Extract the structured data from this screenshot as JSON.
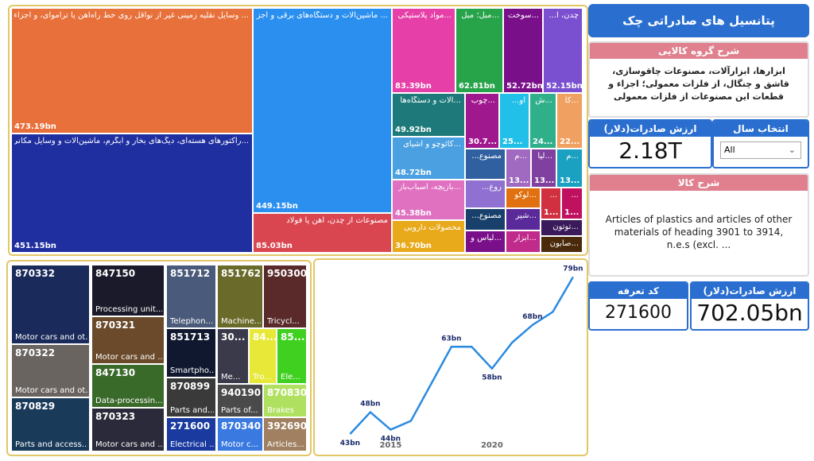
{
  "header": {
    "title": "پتانسیل های صادراتی چک"
  },
  "treemap_top": {
    "tiles": [
      {
        "label": "... وسایل نقلیه زمینی غیر از نواقل روی خط راه‌آهن یا تراموای، و اجزاء و",
        "value": "473.19bn"
      },
      {
        "label": "...رآکتورهای هسته‌ای، دیگ‌های بخار و آبگرم، ماشین‌آلات و وسایل مکانی",
        "value": "451.15bn"
      },
      {
        "label": "... ماشین‌آلات و دستگاه‌های برقی و اجزاء",
        "value": "449.15bn"
      },
      {
        "label": "مصنوعات از چدن، آهن یا فولاد",
        "value": "85.03bn"
      },
      {
        "label": "...مواد پلاستیکی",
        "value": "83.39bn"
      },
      {
        "label": "...مبل؛ مبل",
        "value": "62.81bn"
      },
      {
        "label": "...سوخت",
        "value": "52.72bn"
      },
      {
        "label": "چدن، آ...",
        "value": "52.15bn"
      },
      {
        "label": "...آلات و دستگاه‌ها",
        "value": "49.92bn"
      },
      {
        "label": "...کائوچو و اشیای",
        "value": "48.72bn"
      },
      {
        "label": "...بازیچه، اسباب‌باز",
        "value": "45.38bn"
      },
      {
        "label": "محصولات دارویی",
        "value": "36.70bn"
      },
      {
        "label": "...چوب",
        "value": "30.7..."
      },
      {
        "label": "آو...",
        "value": "25..."
      },
      {
        "label": "...ش",
        "value": "24..."
      },
      {
        "label": "...کا",
        "value": "22..."
      },
      {
        "label": "مصنوع..."
      },
      {
        "label": "...م",
        "value": "13..."
      },
      {
        "label": "...لیا",
        "value": "13..."
      },
      {
        "label": "...م",
        "value": "13..."
      },
      {
        "label": "روغ..."
      },
      {
        "label": "...لوکو"
      },
      {
        "label": "...",
        "value": "1..."
      },
      {
        "label": "...",
        "value": "1..."
      },
      {
        "label": "مصنوع..."
      },
      {
        "label": "...شیر"
      },
      {
        "label": "...لباس و"
      },
      {
        "label": "...ابزار"
      },
      {
        "label": "...توتون"
      },
      {
        "label": "...صابون"
      }
    ]
  },
  "treemap_bottom": {
    "tiles": [
      {
        "code": "870332",
        "label": "Motor cars and ot..."
      },
      {
        "code": "870322",
        "label": "Motor cars and ot..."
      },
      {
        "code": "870829",
        "label": "Parts and access..."
      },
      {
        "code": "847150",
        "label": "Processing unit..."
      },
      {
        "code": "870321",
        "label": "Motor cars and ..."
      },
      {
        "code": "847130",
        "label": "Data-processin..."
      },
      {
        "code": "870323",
        "label": "Motor cars and ..."
      },
      {
        "code": "851712",
        "label": "Telephon..."
      },
      {
        "code": "851713",
        "label": "Smartpho..."
      },
      {
        "code": "870899",
        "label": "Parts and..."
      },
      {
        "code": "271600",
        "label": "Electrical ..."
      },
      {
        "code": "851762",
        "label": "Machine..."
      },
      {
        "code": "30...",
        "label": "Me..."
      },
      {
        "code": "940190",
        "label": "Parts of..."
      },
      {
        "code": "870340",
        "label": "Motor c..."
      },
      {
        "code": "950300",
        "label": "Tricycl..."
      },
      {
        "code": "84...",
        "label": "Tro..."
      },
      {
        "code": "85...",
        "label": "Ele..."
      },
      {
        "code": "870830",
        "label": "Brakes"
      },
      {
        "code": "392690",
        "label": "Articles..."
      }
    ]
  },
  "chart_data": {
    "type": "line",
    "color": "#2a8ae0",
    "x": [
      2013,
      2014,
      2015,
      2016,
      2018,
      2019,
      2020,
      2021,
      2022,
      2023,
      2024
    ],
    "values": [
      43,
      48,
      44,
      46,
      63,
      63,
      58,
      64,
      68,
      71,
      79
    ],
    "value_labels": [
      "43bn",
      "48bn",
      "44bn",
      null,
      "63bn",
      null,
      "58bn",
      null,
      "68bn",
      null,
      "79bn"
    ],
    "xlim": [
      2012.2,
      2024.2
    ],
    "xticks": [
      2015,
      2020
    ],
    "ylim": [
      41,
      82
    ]
  },
  "group_card": {
    "title": "شرح گروه کالایی",
    "text": "ابزارها، ابزارآلات، مصنوعات چاقوسازی، قاشق و چنگال، از فلزات معمولی؛ اجزاء و قطعات این مصنوعات از فلزات معمولی"
  },
  "export_card": {
    "title": "ارزش صادرات(دلار)",
    "value": "2.18T"
  },
  "year_filter": {
    "title": "انتخاب سال",
    "selected": "All"
  },
  "product_card": {
    "title": "شرح کالا",
    "text": "Articles of plastics and articles of other materials of heading 3901 to 3914, n.e.s (excl. ..."
  },
  "tariff_card": {
    "title": "کد تعرفه",
    "value": "271600"
  },
  "product_export_card": {
    "title": "ارزش صادرات(دلار)",
    "value": "702.05bn"
  }
}
